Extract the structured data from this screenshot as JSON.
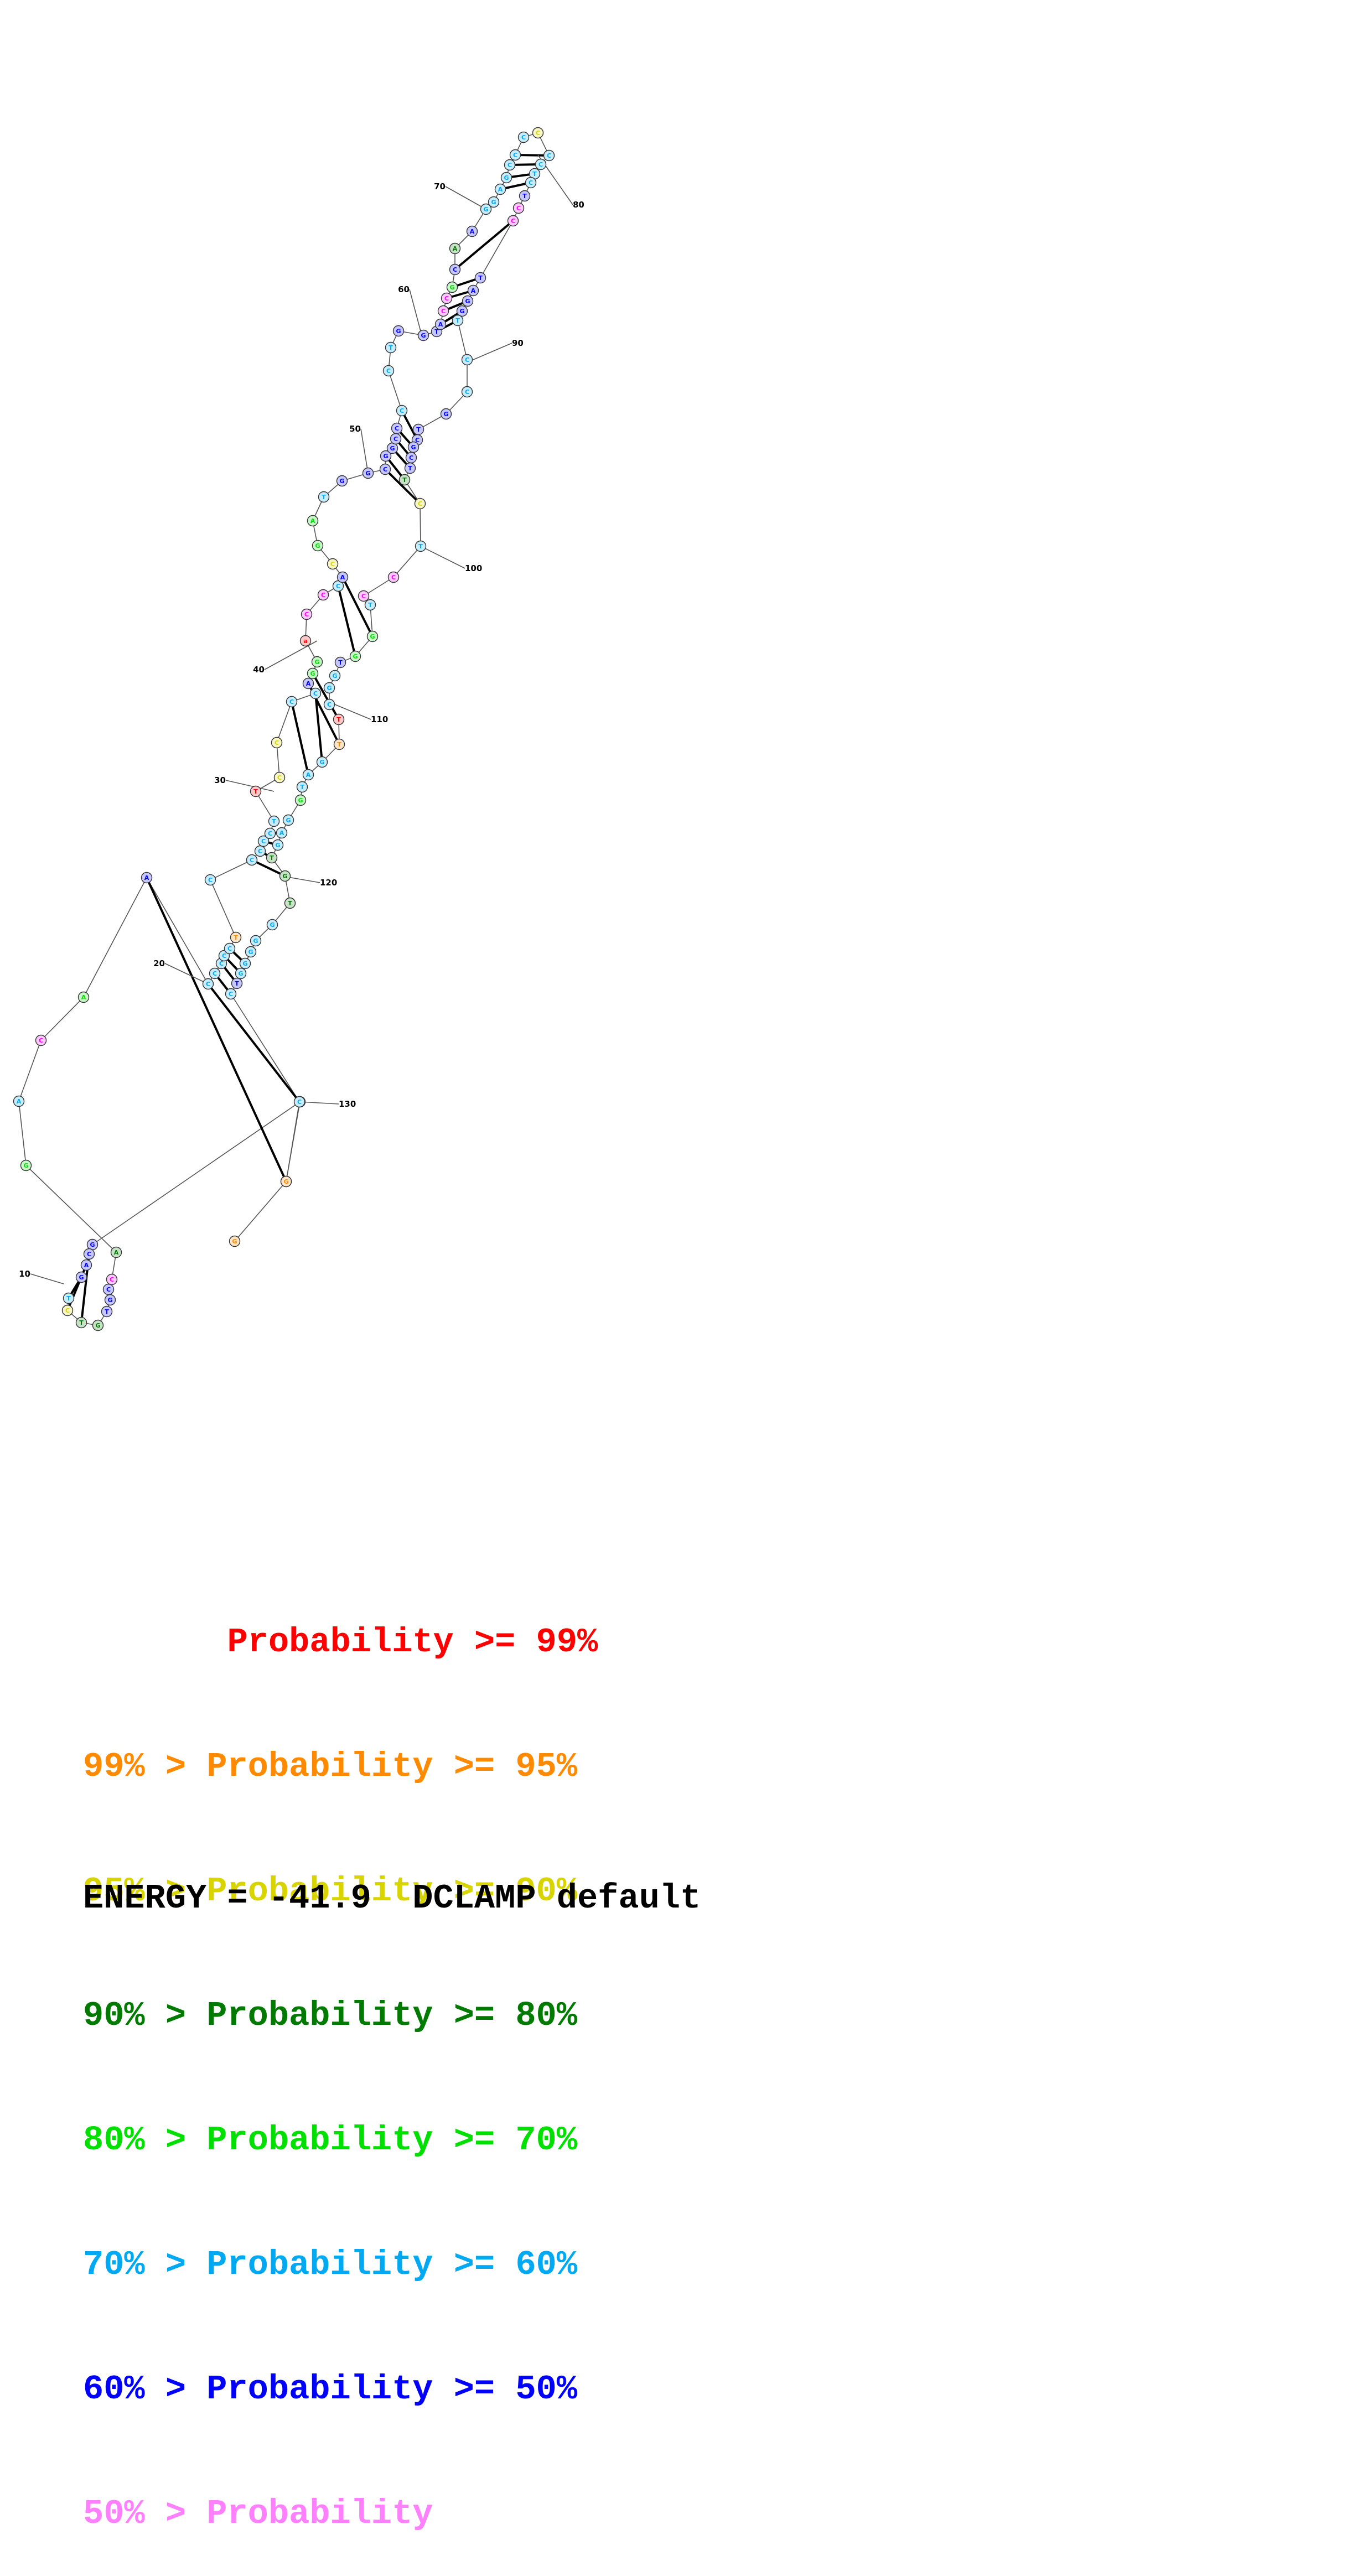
{
  "structure": {
    "nucleotides": [
      {
        "base": "G",
        "color": "#ff8a00"
      },
      {
        "base": "C",
        "color": "#00a9f2"
      },
      {
        "base": "C",
        "color": "#00a9f2"
      },
      {
        "base": "G",
        "color": "#0000ff"
      },
      {
        "base": "C",
        "color": "#0000ff"
      },
      {
        "base": "A",
        "color": "#0000ff"
      },
      {
        "base": "G",
        "color": "#0000ff"
      },
      {
        "base": "T",
        "color": "#00a9f2"
      },
      {
        "base": "C",
        "color": "#d8d400"
      },
      {
        "base": "T",
        "color": "#007a00"
      },
      {
        "base": "G",
        "color": "#007a00"
      },
      {
        "base": "T",
        "color": "#0000ff"
      },
      {
        "base": "G",
        "color": "#0000ff"
      },
      {
        "base": "C",
        "color": "#0000ff"
      },
      {
        "base": "C",
        "color": "#ff00ff"
      },
      {
        "base": "A",
        "color": "#007a00"
      },
      {
        "base": "G",
        "color": "#00e000"
      },
      {
        "base": "A",
        "color": "#00a9f2"
      },
      {
        "base": "C",
        "color": "#ff00ff"
      },
      {
        "base": "A",
        "color": "#00e000"
      },
      {
        "base": "A",
        "color": "#0000ff"
      },
      {
        "base": "C",
        "color": "#00a9f2"
      },
      {
        "base": "C",
        "color": "#00a9f2"
      },
      {
        "base": "C",
        "color": "#00a9f2"
      },
      {
        "base": "C",
        "color": "#00a9f2"
      },
      {
        "base": "C",
        "color": "#00a9f2"
      },
      {
        "base": "T",
        "color": "#ff8a00"
      },
      {
        "base": "C",
        "color": "#00a9f2"
      },
      {
        "base": "C",
        "color": "#00a9f2"
      },
      {
        "base": "C",
        "color": "#00a9f2"
      },
      {
        "base": "C",
        "color": "#00a9f2"
      },
      {
        "base": "C",
        "color": "#00a9f2"
      },
      {
        "base": "T",
        "color": "#00a9f2"
      },
      {
        "base": "T",
        "color": "#ff0000"
      },
      {
        "base": "C",
        "color": "#d8d400"
      },
      {
        "base": "C",
        "color": "#d8d400"
      },
      {
        "base": "C",
        "color": "#00a9f2"
      },
      {
        "base": "C",
        "color": "#00a9f2"
      },
      {
        "base": "A",
        "color": "#0000ff"
      },
      {
        "base": "G",
        "color": "#00e000"
      },
      {
        "base": "G",
        "color": "#00e000"
      },
      {
        "base": "a",
        "color": "#ff0000"
      },
      {
        "base": "C",
        "color": "#ff00ff"
      },
      {
        "base": "C",
        "color": "#ff00ff"
      },
      {
        "base": "C",
        "color": "#00a9f2"
      },
      {
        "base": "A",
        "color": "#0000ff"
      },
      {
        "base": "C",
        "color": "#d8d400"
      },
      {
        "base": "G",
        "color": "#00e000"
      },
      {
        "base": "A",
        "color": "#00e000"
      },
      {
        "base": "T",
        "color": "#00a9f2"
      },
      {
        "base": "G",
        "color": "#0000ff"
      },
      {
        "base": "G",
        "color": "#0000ff"
      },
      {
        "base": "C",
        "color": "#0000ff"
      },
      {
        "base": "G",
        "color": "#0000ff"
      },
      {
        "base": "G",
        "color": "#0000ff"
      },
      {
        "base": "C",
        "color": "#0000ff"
      },
      {
        "base": "C",
        "color": "#0000ff"
      },
      {
        "base": "C",
        "color": "#00a9f2"
      },
      {
        "base": "C",
        "color": "#00a9f2"
      },
      {
        "base": "T",
        "color": "#00a9f2"
      },
      {
        "base": "G",
        "color": "#0000ff"
      },
      {
        "base": "G",
        "color": "#0000ff"
      },
      {
        "base": "T",
        "color": "#0000ff"
      },
      {
        "base": "A",
        "color": "#0000ff"
      },
      {
        "base": "C",
        "color": "#ff00ff"
      },
      {
        "base": "C",
        "color": "#ff00ff"
      },
      {
        "base": "G",
        "color": "#00e000"
      },
      {
        "base": "C",
        "color": "#0000ff"
      },
      {
        "base": "A",
        "color": "#007a00"
      },
      {
        "base": "A",
        "color": "#0000ff"
      },
      {
        "base": "G",
        "color": "#00a9f2"
      },
      {
        "base": "G",
        "color": "#00a9f2"
      },
      {
        "base": "A",
        "color": "#00a9f2"
      },
      {
        "base": "G",
        "color": "#00a9f2"
      },
      {
        "base": "C",
        "color": "#00a9f2"
      },
      {
        "base": "C",
        "color": "#00a9f2"
      },
      {
        "base": "C",
        "color": "#00a9f2"
      },
      {
        "base": "C",
        "color": "#d8d400"
      },
      {
        "base": "C",
        "color": "#00a9f2"
      },
      {
        "base": "C",
        "color": "#00a9f2"
      },
      {
        "base": "T",
        "color": "#00a9f2"
      },
      {
        "base": "C",
        "color": "#00a9f2"
      },
      {
        "base": "T",
        "color": "#0000ff"
      },
      {
        "base": "C",
        "color": "#ff00ff"
      },
      {
        "base": "C",
        "color": "#ff00ff"
      },
      {
        "base": "T",
        "color": "#0000ff"
      },
      {
        "base": "A",
        "color": "#0000ff"
      },
      {
        "base": "G",
        "color": "#0000ff"
      },
      {
        "base": "G",
        "color": "#0000ff"
      },
      {
        "base": "T",
        "color": "#00a9f2"
      },
      {
        "base": "C",
        "color": "#00a9f2"
      },
      {
        "base": "C",
        "color": "#00a9f2"
      },
      {
        "base": "G",
        "color": "#0000ff"
      },
      {
        "base": "T",
        "color": "#0000ff"
      },
      {
        "base": "C",
        "color": "#0000ff"
      },
      {
        "base": "G",
        "color": "#0000ff"
      },
      {
        "base": "C",
        "color": "#0000ff"
      },
      {
        "base": "T",
        "color": "#0000ff"
      },
      {
        "base": "T",
        "color": "#007a00"
      },
      {
        "base": "C",
        "color": "#d8d400"
      },
      {
        "base": "T",
        "color": "#00a9f2"
      },
      {
        "base": "C",
        "color": "#ff00ff"
      },
      {
        "base": "C",
        "color": "#ff00ff"
      },
      {
        "base": "T",
        "color": "#00a9f2"
      },
      {
        "base": "G",
        "color": "#00e000"
      },
      {
        "base": "G",
        "color": "#00e000"
      },
      {
        "base": "T",
        "color": "#0000ff"
      },
      {
        "base": "G",
        "color": "#00a9f2"
      },
      {
        "base": "G",
        "color": "#00a9f2"
      },
      {
        "base": "C",
        "color": "#00a9f2"
      },
      {
        "base": "T",
        "color": "#ff0000"
      },
      {
        "base": "T",
        "color": "#ff8a00"
      },
      {
        "base": "G",
        "color": "#00a9f2"
      },
      {
        "base": "A",
        "color": "#00a9f2"
      },
      {
        "base": "T",
        "color": "#00a9f2"
      },
      {
        "base": "G",
        "color": "#00e000"
      },
      {
        "base": "G",
        "color": "#00a9f2"
      },
      {
        "base": "A",
        "color": "#00a9f2"
      },
      {
        "base": "G",
        "color": "#00a9f2"
      },
      {
        "base": "T",
        "color": "#007a00"
      },
      {
        "base": "G",
        "color": "#007a00"
      },
      {
        "base": "T",
        "color": "#007a00"
      },
      {
        "base": "G",
        "color": "#00a9f2"
      },
      {
        "base": "G",
        "color": "#00a9f2"
      },
      {
        "base": "G",
        "color": "#00a9f2"
      },
      {
        "base": "G",
        "color": "#00a9f2"
      },
      {
        "base": "G",
        "color": "#00a9f2"
      },
      {
        "base": "T",
        "color": "#0000ff"
      },
      {
        "base": "C",
        "color": "#00a9f2"
      },
      {
        "base": "C",
        "color": "#00a9f2"
      },
      {
        "base": "G",
        "color": "#ff8a00"
      }
    ],
    "pairs": [
      [
        4,
        9
      ],
      [
        5,
        8
      ],
      [
        6,
        7
      ],
      [
        7,
        6
      ],
      [
        20,
        130
      ],
      [
        21,
        129
      ],
      [
        22,
        128
      ],
      [
        23,
        127
      ],
      [
        24,
        126
      ],
      [
        25,
        125
      ],
      [
        28,
        120
      ],
      [
        29,
        119
      ],
      [
        30,
        118
      ],
      [
        31,
        117
      ],
      [
        36,
        113
      ],
      [
        37,
        112
      ],
      [
        38,
        111
      ],
      [
        39,
        110
      ],
      [
        44,
        105
      ],
      [
        45,
        104
      ],
      [
        52,
        99
      ],
      [
        53,
        98
      ],
      [
        54,
        97
      ],
      [
        55,
        96
      ],
      [
        56,
        95
      ],
      [
        57,
        94
      ],
      [
        62,
        89
      ],
      [
        63,
        88
      ],
      [
        64,
        87
      ],
      [
        65,
        86
      ],
      [
        66,
        85
      ],
      [
        67,
        84
      ],
      [
        72,
        81
      ],
      [
        73,
        80
      ],
      [
        74,
        79
      ],
      [
        75,
        78
      ]
    ],
    "position_labels": [
      "10",
      "20",
      "30",
      "40",
      "50",
      "60",
      "70",
      "80",
      "90",
      "100",
      "110",
      "120",
      "130"
    ]
  },
  "legend": [
    {
      "text": "       Probability >= 99%",
      "color": "#ff0000"
    },
    {
      "text": "99% > Probability >= 95%",
      "color": "#ff8a00"
    },
    {
      "text": "95% > Probability >= 90%",
      "color": "#d8d400"
    },
    {
      "text": "90% > Probability >= 80%",
      "color": "#007a00"
    },
    {
      "text": "80% > Probability >= 70%",
      "color": "#00e000"
    },
    {
      "text": "70% > Probability >= 60%",
      "color": "#00a9f2"
    },
    {
      "text": "60% > Probability >= 50%",
      "color": "#0000ff"
    },
    {
      "text": "50% > Probability",
      "color": "#ff80ff"
    }
  ],
  "energy": {
    "text": "ENERGY = -41.9  DCLAMP default"
  }
}
